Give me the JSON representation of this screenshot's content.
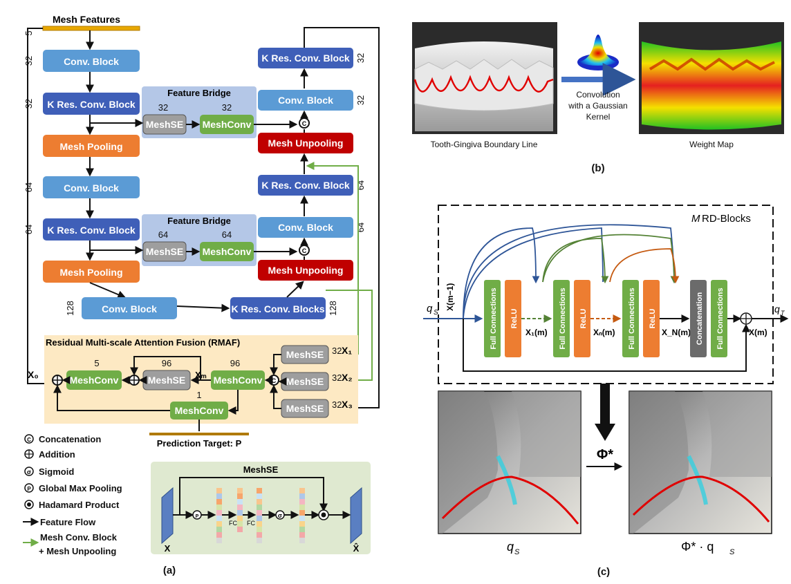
{
  "panel_a": {
    "caption": "(a)",
    "mesh_features": "Mesh Features",
    "blocks": {
      "conv_block": "Conv. Block",
      "k_res_conv_block": "K Res. Conv. Block",
      "k_res_conv_blocks": "K Res. Conv. Blocks",
      "mesh_pooling": "Mesh Pooling",
      "mesh_unpooling": "Mesh Unpooling",
      "meshse": "MeshSE",
      "meshconv": "MeshConv",
      "feature_bridge": "Feature Bridge"
    },
    "dims": {
      "d5": "5",
      "d32": "32",
      "d64": "64",
      "d96": "96",
      "d128": "128",
      "d1": "1"
    },
    "rmaf_title": "Residual Multi-scale Attention Fusion (RMAF)",
    "prediction_target": "Prediction Target: P",
    "vars": {
      "x0": "X₀",
      "x1": "X₁",
      "x2": "X₂",
      "x3": "X₃",
      "xm": "Xₘ",
      "x": "X",
      "xhat": "X̂"
    },
    "legend": [
      {
        "symbol": "C",
        "label": "Concatenation"
      },
      {
        "symbol": "+",
        "label": "Addition"
      },
      {
        "symbol": "σ",
        "label": "Sigmoid"
      },
      {
        "symbol": "P",
        "label": "Global Max Pooling"
      },
      {
        "symbol": "●",
        "label": "Hadamard Product"
      },
      {
        "symbol": "→",
        "label": "Feature Flow"
      },
      {
        "symbol": "→",
        "label": "Mesh Conv. Block"
      },
      {
        "symbol": "",
        "label": "+ Mesh Unpooling"
      }
    ],
    "meshse_detail": {
      "title": "MeshSE",
      "fc": "FC",
      "p": "P",
      "sigma": "σ"
    }
  },
  "panel_b": {
    "caption": "(b)",
    "left_label": "Tooth-Gingiva Boundary Line",
    "right_label": "Weight Map",
    "arrow_text_1": "Convolution",
    "arrow_text_2": "with a Gaussian",
    "arrow_text_3": "Kernel"
  },
  "panel_c": {
    "caption": "(c)",
    "rd_blocks": "RD-Blocks",
    "m": "M",
    "full_connections": "Full Connections",
    "relu": "ReLU",
    "concatenation": "Concatenation",
    "qs": "q",
    "qs_sub": "S",
    "qt": "q",
    "qt_sub": "T",
    "x_prev": "X(m−1)",
    "x1": "X₁(m)",
    "xn": "Xₙ(m)",
    "xN": "X_N(m)",
    "xm": "X(m)",
    "phi": "Φ*",
    "phi_qs": "Φ* · q",
    "bottom_left": "q",
    "bottom_right_sub": "S"
  },
  "colors": {
    "conv_block": "#5b9bd5",
    "k_res": "#3f5fb8",
    "pooling": "#ed7d31",
    "unpooling": "#c00000",
    "meshse": "#9e9e9e",
    "meshconv": "#70ad47",
    "feature_bridge": "#b4c7e7",
    "rmaf_bg": "#fde9c3",
    "meshse_detail_bg": "#dfe9d0",
    "relu": "#ed7d31",
    "concat": "#6b6b6b"
  }
}
